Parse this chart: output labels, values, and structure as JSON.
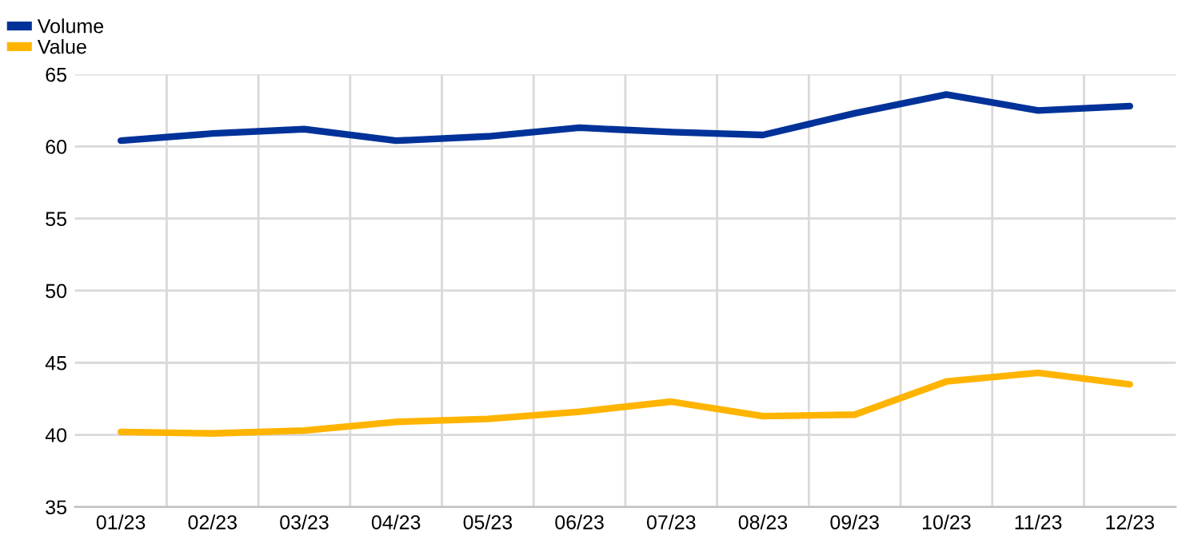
{
  "chart_data": {
    "type": "line",
    "categories": [
      "01/23",
      "02/23",
      "03/23",
      "04/23",
      "05/23",
      "06/23",
      "07/23",
      "08/23",
      "09/23",
      "10/23",
      "11/23",
      "12/23"
    ],
    "series": [
      {
        "name": "Volume",
        "color": "#003299",
        "values": [
          60.4,
          60.9,
          61.2,
          60.4,
          60.7,
          61.3,
          61.0,
          60.8,
          62.3,
          63.6,
          62.5,
          62.8
        ]
      },
      {
        "name": "Value",
        "color": "#ffb400",
        "values": [
          40.2,
          40.1,
          40.3,
          40.9,
          41.1,
          41.6,
          42.3,
          41.3,
          41.4,
          43.7,
          44.3,
          43.5
        ]
      }
    ],
    "ylim": [
      35,
      65
    ],
    "yticks": [
      35,
      40,
      45,
      50,
      55,
      60,
      65
    ],
    "grid": true,
    "legend": "top left",
    "marker": "none",
    "line_style": "solid"
  }
}
